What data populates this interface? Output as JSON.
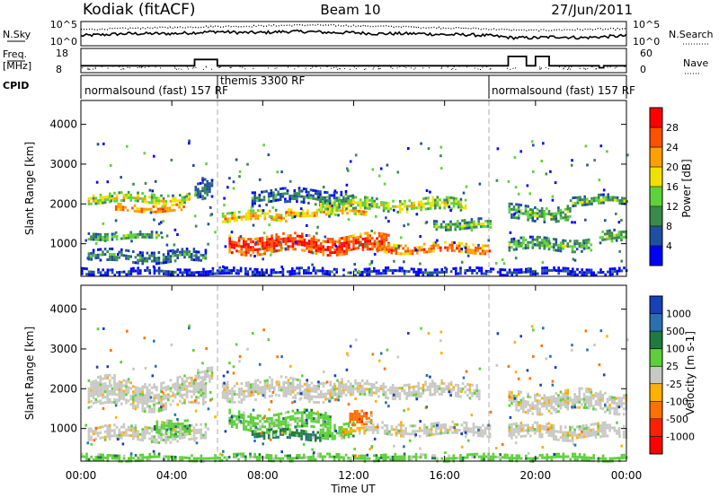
{
  "header": {
    "station": "Kodiak (fitACF)",
    "beam": "Beam 10",
    "date": "27/Jun/2011"
  },
  "colors": {
    "power_scale": [
      "#0000ff",
      "#1f4fa0",
      "#3a8a4c",
      "#5fd23a",
      "#f0e000",
      "#ff9f00",
      "#ff5000",
      "#ff0000"
    ],
    "velocity_scale": [
      "#1840b8",
      "#2a70b0",
      "#1e7a40",
      "#5cd03a",
      "#c8c8c4",
      "#ffb000",
      "#ff7000",
      "#ff2000",
      "#ff0000"
    ]
  },
  "chart_data": [
    {
      "type": "line",
      "panel": "N.Sky / N.Search",
      "left_label": "N.Sky",
      "right_label": "N.Search",
      "left_ticks": [
        "10^5",
        "10^0"
      ],
      "right_ticks": [
        "10^5",
        "10^0"
      ],
      "x": [
        0,
        1,
        2,
        3,
        4,
        5,
        6,
        7,
        8,
        9,
        10,
        11,
        12,
        13,
        14,
        15,
        16,
        17,
        18,
        19,
        20,
        21,
        22,
        23,
        24
      ],
      "series": [
        {
          "name": "N.Sky",
          "values": [
            0.4,
            0.45,
            0.5,
            0.5,
            0.5,
            0.55,
            0.6,
            0.55,
            0.55,
            0.6,
            0.6,
            0.55,
            0.55,
            0.5,
            0.5,
            0.5,
            0.45,
            0.45,
            0.4,
            0.3,
            0.3,
            0.35,
            0.3,
            0.35,
            0.4
          ]
        },
        {
          "name": "N.Search",
          "values": [
            0.7,
            0.72,
            0.75,
            0.78,
            0.8,
            0.82,
            0.85,
            0.85,
            0.88,
            0.9,
            0.92,
            0.9,
            0.88,
            0.86,
            0.84,
            0.8,
            0.78,
            0.76,
            0.72,
            0.68,
            0.66,
            0.68,
            0.7,
            0.72,
            0.72
          ]
        }
      ]
    },
    {
      "type": "line",
      "panel": "Freq. / Nave",
      "left_label": "Freq.",
      "left_unit": "[MHz]",
      "right_label": "Nave",
      "left_ticks": [
        18,
        8
      ],
      "right_ticks": [
        60,
        0
      ],
      "x": [
        0,
        5,
        5,
        6,
        6,
        18.8,
        18.8,
        19.6,
        19.6,
        20,
        20,
        20.6,
        20.6,
        22.8,
        22.8,
        23,
        23,
        24
      ],
      "series": [
        {
          "name": "Freq.",
          "values": [
            10.5,
            10.5,
            13.5,
            13.5,
            10.5,
            10.5,
            15,
            15,
            10.5,
            10.5,
            15,
            15,
            10.5,
            10.5,
            9.5,
            9.5,
            10.5,
            10.5
          ]
        }
      ]
    },
    {
      "type": "table",
      "panel": "CPID",
      "label": "CPID",
      "segments": [
        {
          "start": 0,
          "end": 6,
          "text": "normalsound (fast) 157 RF"
        },
        {
          "start": 6,
          "end": 18,
          "text": "themis 3300 RF"
        },
        {
          "start": 18,
          "end": 24,
          "text": "normalsound (fast) 157 RF"
        }
      ]
    },
    {
      "type": "heatmap",
      "panel": "Power",
      "ylabel": "Slant Range [km]",
      "colorbar_label": "Power [dB]",
      "colorbar_ticks": [
        4,
        8,
        12,
        16,
        20,
        24,
        28
      ],
      "ylim": [
        180,
        4600
      ],
      "yticks": [
        1000,
        2000,
        3000,
        4000
      ],
      "xlim": [
        0,
        24
      ],
      "echo_bands": [
        {
          "start": 0.3,
          "end": 4.8,
          "range": 2150,
          "width": 260,
          "level": 4
        },
        {
          "start": 1.5,
          "end": 4.5,
          "range": 1900,
          "width": 200,
          "level": 6
        },
        {
          "start": 0.3,
          "end": 3.5,
          "range": 1200,
          "width": 200,
          "level": 3
        },
        {
          "start": 0.3,
          "end": 5.5,
          "range": 700,
          "width": 300,
          "level": 2
        },
        {
          "start": 5.0,
          "end": 5.8,
          "range": 2400,
          "width": 500,
          "level": 2
        },
        {
          "start": 6.2,
          "end": 9.0,
          "range": 1700,
          "width": 250,
          "level": 5
        },
        {
          "start": 6.5,
          "end": 13.5,
          "range": 1000,
          "width": 450,
          "level": 7
        },
        {
          "start": 7.5,
          "end": 12.0,
          "range": 2200,
          "width": 350,
          "level": 2
        },
        {
          "start": 9.0,
          "end": 12.5,
          "range": 1800,
          "width": 200,
          "level": 5
        },
        {
          "start": 10.5,
          "end": 17.0,
          "range": 2000,
          "width": 300,
          "level": 4
        },
        {
          "start": 13.0,
          "end": 18.0,
          "range": 900,
          "width": 250,
          "level": 6
        },
        {
          "start": 15.5,
          "end": 18.0,
          "range": 1500,
          "width": 250,
          "level": 3
        },
        {
          "start": 18.8,
          "end": 21.5,
          "range": 1800,
          "width": 350,
          "level": 3
        },
        {
          "start": 18.8,
          "end": 22.5,
          "range": 1000,
          "width": 300,
          "level": 3
        },
        {
          "start": 21.5,
          "end": 24.0,
          "range": 2100,
          "width": 250,
          "level": 3
        },
        {
          "start": 22.8,
          "end": 24.0,
          "range": 1200,
          "width": 300,
          "level": 3
        },
        {
          "start": 0.0,
          "end": 24.0,
          "range": 320,
          "width": 160,
          "level": 1
        }
      ]
    },
    {
      "type": "heatmap",
      "panel": "Velocity",
      "ylabel": "Slant Range [km]",
      "xlabel": "Time UT",
      "colorbar_label": "Velocity [m s-1]",
      "colorbar_ticks": [
        1000,
        500,
        100,
        25,
        -25,
        -100,
        -500,
        -1000
      ],
      "ylim": [
        180,
        4600
      ],
      "yticks": [
        1000,
        2000,
        3000,
        4000
      ],
      "xlim": [
        0,
        24
      ],
      "xticks": [
        "00:00",
        "04:00",
        "08:00",
        "12:00",
        "16:00",
        "20:00",
        "00:00"
      ],
      "echo_bands": [
        {
          "start": 0.3,
          "end": 5.5,
          "range": 1900,
          "width": 700,
          "level": 4
        },
        {
          "start": 0.3,
          "end": 5.5,
          "range": 900,
          "width": 350,
          "level": 4
        },
        {
          "start": 3.2,
          "end": 4.8,
          "range": 1100,
          "width": 350,
          "level": 3
        },
        {
          "start": 5.0,
          "end": 5.8,
          "range": 2300,
          "width": 400,
          "level": 4
        },
        {
          "start": 6.2,
          "end": 11.5,
          "range": 2000,
          "width": 500,
          "level": 4
        },
        {
          "start": 6.5,
          "end": 11.0,
          "range": 1200,
          "width": 450,
          "level": 3
        },
        {
          "start": 7.5,
          "end": 10.5,
          "range": 850,
          "width": 250,
          "level": 2
        },
        {
          "start": 10.5,
          "end": 12.0,
          "range": 1000,
          "width": 350,
          "level": 3
        },
        {
          "start": 11.8,
          "end": 12.8,
          "range": 1350,
          "width": 350,
          "level": 6
        },
        {
          "start": 11.5,
          "end": 12.5,
          "range": 950,
          "width": 150,
          "level": 5
        },
        {
          "start": 12.5,
          "end": 18.0,
          "range": 1000,
          "width": 300,
          "level": 4
        },
        {
          "start": 11.0,
          "end": 17.5,
          "range": 2000,
          "width": 350,
          "level": 4
        },
        {
          "start": 18.8,
          "end": 24.0,
          "range": 1700,
          "width": 500,
          "level": 4
        },
        {
          "start": 18.8,
          "end": 24.0,
          "range": 950,
          "width": 350,
          "level": 4
        },
        {
          "start": 0.0,
          "end": 24.0,
          "range": 300,
          "width": 140,
          "level": 3
        }
      ]
    }
  ]
}
